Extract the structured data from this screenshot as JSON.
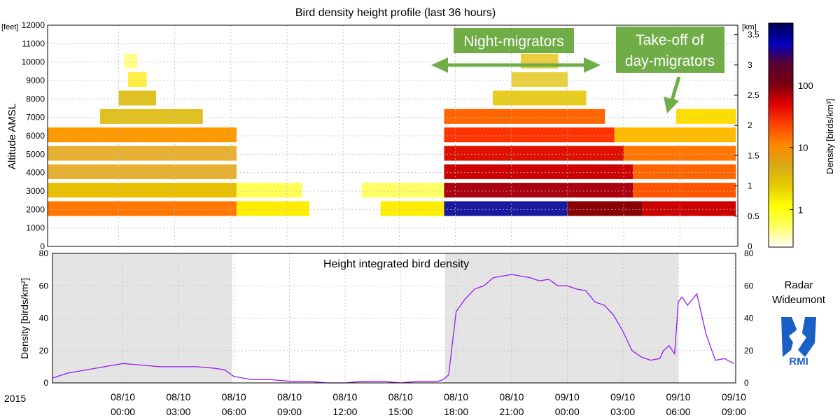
{
  "title": "Bird density height profile (last 36 hours)",
  "year_label": "2015",
  "station": {
    "line1": "Radar",
    "line2": "Wideumont",
    "logo_text": "RMI"
  },
  "chart_data": [
    {
      "type": "heatmap",
      "title": "Bird density height profile (last 36 hours)",
      "ylabel": "Altitude AMSL",
      "y_unit_left": "[feet]",
      "y_unit_right": "[km]",
      "ylim_feet": [
        0,
        12000
      ],
      "left_ticks_feet": [
        "0",
        "1000",
        "2000",
        "3000",
        "4000",
        "5000",
        "6000",
        "7000",
        "8000",
        "9000",
        "10000",
        "11000",
        "12000"
      ],
      "right_ticks_km": [
        "0",
        "0.5",
        "1",
        "1.5",
        "2",
        "2.5",
        "3",
        "3.5"
      ],
      "x_hours_range": [
        -3.8,
        33.1
      ],
      "colorbar": {
        "label": "Density [birds/km³]",
        "scale": "log",
        "ticks": [
          "1",
          "10",
          "100"
        ],
        "colors": [
          "#ffffff",
          "#ffff66",
          "#ffff00",
          "#e6cc00",
          "#d7a818",
          "#ff8800",
          "#ff4400",
          "#e00000",
          "#7a0010",
          "#5a0030",
          "#0000c0",
          "#000050"
        ]
      },
      "profiles_by_layer_ft": [
        {
          "alt_ft": 2000,
          "segments": [
            [
              -3.8,
              6.3,
              "#ff7700"
            ],
            [
              17.4,
              24,
              "#1a1aa0"
            ],
            [
              24,
              28,
              "#8a0000"
            ],
            [
              28,
              33,
              "#cc0000"
            ],
            [
              6.3,
              10.2,
              "#ffee00"
            ],
            [
              14,
              17.4,
              "#ffee00"
            ]
          ]
        },
        {
          "alt_ft": 3000,
          "segments": [
            [
              -3.8,
              6.3,
              "#e8c000"
            ],
            [
              17.4,
              27.5,
              "#aa0010"
            ],
            [
              27.5,
              33,
              "#ff5500"
            ],
            [
              6.3,
              9.8,
              "#ffff55"
            ],
            [
              13,
              17.4,
              "#ffff66"
            ]
          ]
        },
        {
          "alt_ft": 4000,
          "segments": [
            [
              -3.8,
              6.3,
              "#e8b030"
            ],
            [
              17.4,
              27.5,
              "#cc0000"
            ],
            [
              27.5,
              33,
              "#ff6600"
            ]
          ]
        },
        {
          "alt_ft": 5000,
          "segments": [
            [
              -3.8,
              6.3,
              "#e8b030"
            ],
            [
              17.4,
              27,
              "#e01000"
            ],
            [
              27,
              33,
              "#ff7700"
            ]
          ]
        },
        {
          "alt_ft": 6000,
          "segments": [
            [
              -3.8,
              6.3,
              "#ff9900"
            ],
            [
              17.4,
              26.5,
              "#ff3300"
            ],
            [
              26.5,
              33,
              "#ffbb00"
            ]
          ]
        },
        {
          "alt_ft": 7000,
          "segments": [
            [
              -1,
              4.5,
              "#e0c020"
            ],
            [
              17.4,
              26,
              "#ff6600"
            ],
            [
              29.8,
              33,
              "#ffdd00"
            ]
          ]
        },
        {
          "alt_ft": 8000,
          "segments": [
            [
              0,
              2,
              "#e0c020"
            ],
            [
              20,
              25,
              "#e8cc20"
            ]
          ]
        },
        {
          "alt_ft": 9000,
          "segments": [
            [
              0.5,
              1.5,
              "#ffee44"
            ],
            [
              21,
              24,
              "#e8d040"
            ]
          ]
        },
        {
          "alt_ft": 10000,
          "segments": [
            [
              0.3,
              1,
              "#ffff88"
            ],
            [
              21.5,
              23.5,
              "#eecc40"
            ]
          ]
        }
      ]
    },
    {
      "type": "line",
      "title": "Height integrated bird density",
      "ylabel": "Density [birds/km²]",
      "ylim": [
        0,
        80
      ],
      "yticks": [
        "0",
        "20",
        "40",
        "60",
        "80"
      ],
      "x_hours_range": [
        -3.8,
        33.1
      ],
      "x_tick_hours": [
        0,
        3,
        6,
        9,
        12,
        15,
        18,
        21,
        24,
        27,
        30,
        33
      ],
      "x_tick_dates": [
        "08/10",
        "08/10",
        "08/10",
        "08/10",
        "08/10",
        "08/10",
        "08/10",
        "08/10",
        "09/10",
        "09/10",
        "09/10",
        "09/10"
      ],
      "x_tick_times": [
        "00:00",
        "03:00",
        "06:00",
        "09:00",
        "12:00",
        "15:00",
        "18:00",
        "21:00",
        "00:00",
        "03:00",
        "06:00",
        "09:00"
      ],
      "night_shading": [
        [
          -3.8,
          5.9
        ],
        [
          17.4,
          30.0
        ]
      ],
      "line_color": "#9a1cf0",
      "series": [
        {
          "x": [
            -3.8,
            -3,
            -2,
            -1,
            0,
            1,
            2,
            3,
            4,
            5,
            5.5,
            6,
            6.5,
            7,
            8,
            9,
            10,
            11,
            12,
            13,
            14,
            15,
            16,
            16.5,
            17,
            17.3,
            17.6,
            18,
            18.5,
            19,
            19.5,
            20,
            20.5,
            21,
            21.5,
            22,
            22.5,
            23,
            23.5,
            24,
            24.5,
            25,
            25.5,
            26,
            26.5,
            27,
            27.5,
            28,
            28.5,
            29,
            29.2,
            29.5,
            29.8,
            30,
            30.2,
            30.5,
            31,
            31.5,
            32,
            32.5,
            33
          ],
          "y": [
            3,
            6,
            8,
            10,
            12,
            11,
            10,
            10,
            10,
            9,
            8,
            4,
            3,
            2,
            2,
            1,
            1,
            0,
            0,
            1,
            1,
            0,
            1,
            1,
            1,
            2,
            5,
            44,
            52,
            58,
            60,
            65,
            66,
            67,
            66,
            65,
            63,
            64,
            60,
            60,
            58,
            57,
            50,
            48,
            42,
            32,
            20,
            16,
            14,
            15,
            20,
            23,
            18,
            50,
            53,
            48,
            55,
            30,
            14,
            15,
            12
          ]
        }
      ]
    }
  ],
  "annotations": [
    {
      "text": "Night-migrators",
      "arrow": "horizontal-double"
    },
    {
      "text_line1": "Take-off of",
      "text_line2": "day-migrators",
      "arrow": "diagonal-down"
    }
  ]
}
